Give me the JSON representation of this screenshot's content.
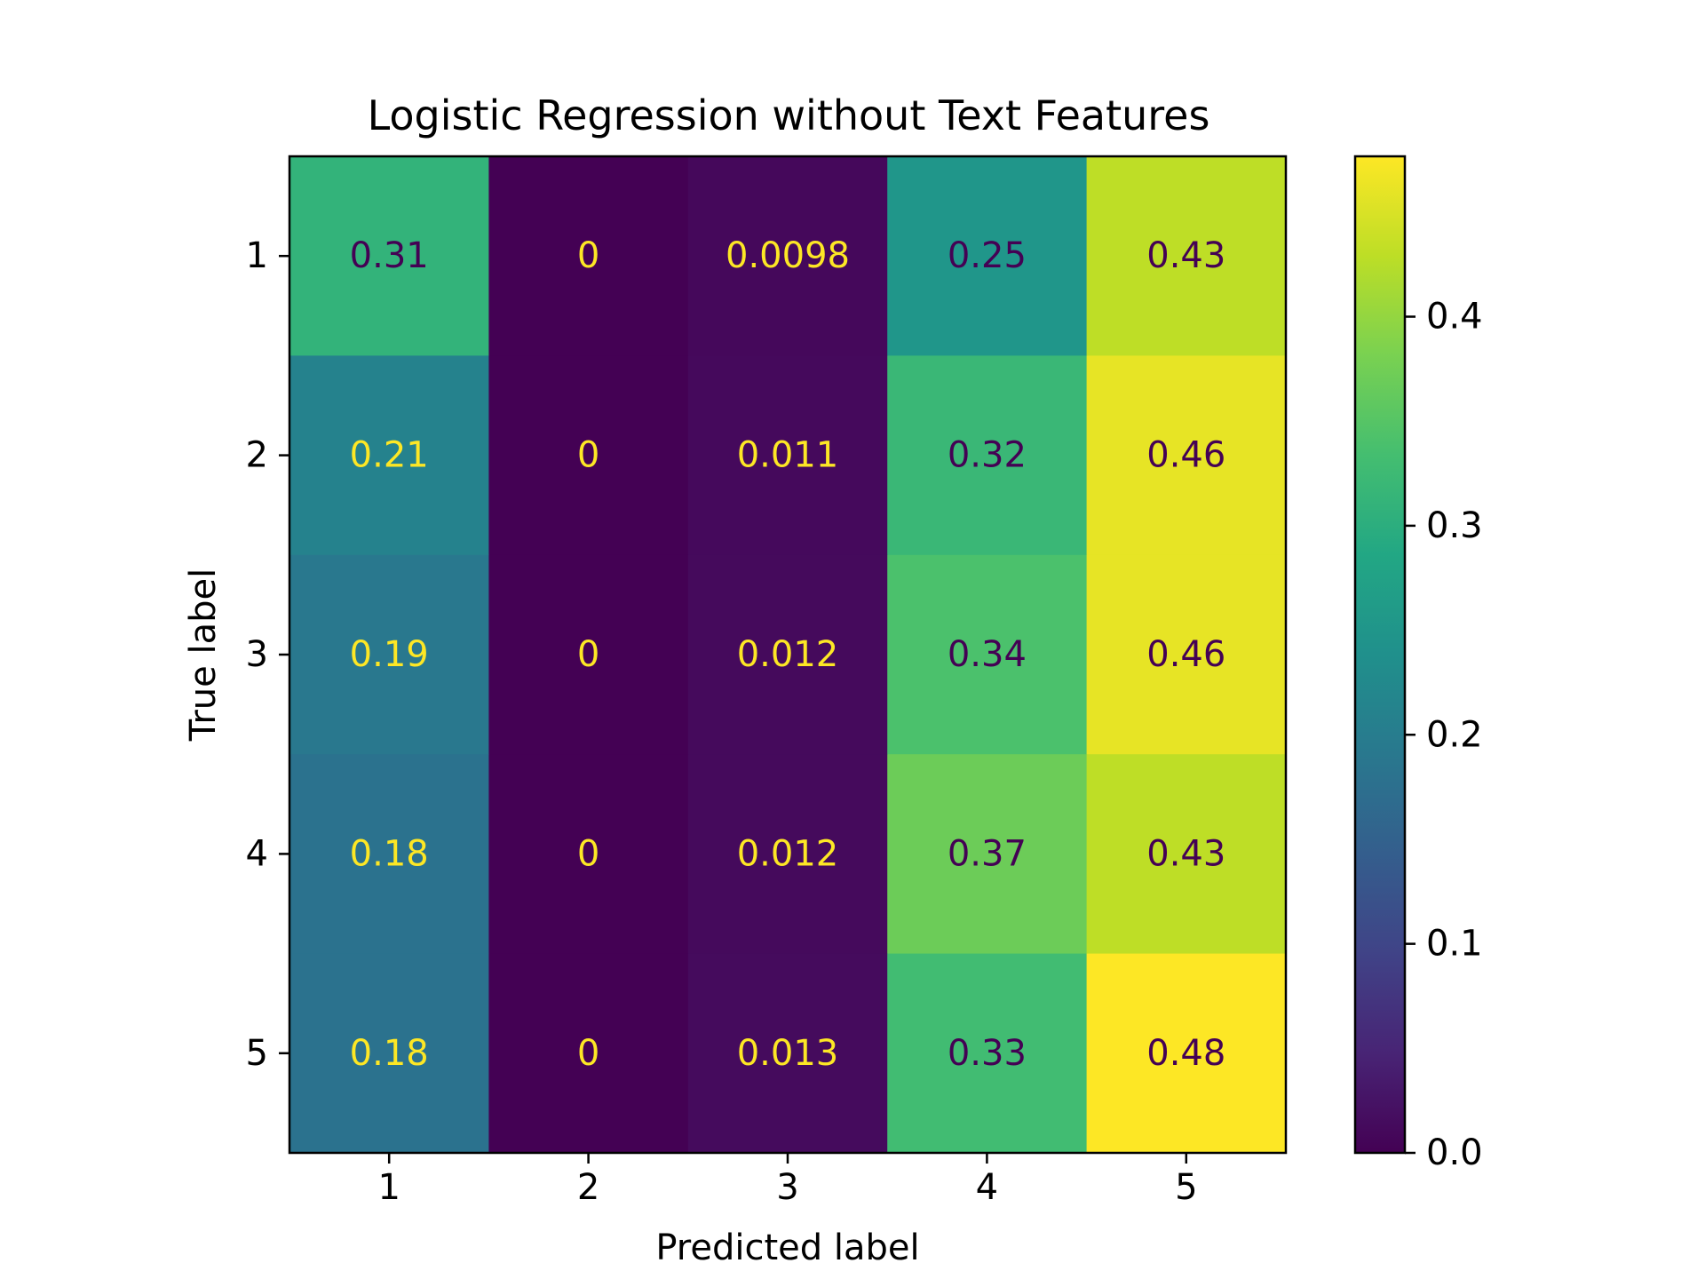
{
  "chart_data": {
    "type": "heatmap",
    "title": "Logistic Regression without Text Features",
    "xlabel": "Predicted label",
    "ylabel": "True label",
    "x_categories": [
      "1",
      "2",
      "3",
      "4",
      "5"
    ],
    "y_categories": [
      "1",
      "2",
      "3",
      "4",
      "5"
    ],
    "values": [
      [
        0.31,
        0,
        0.0098,
        0.25,
        0.43
      ],
      [
        0.21,
        0,
        0.011,
        0.32,
        0.46
      ],
      [
        0.19,
        0,
        0.012,
        0.34,
        0.46
      ],
      [
        0.18,
        0,
        0.012,
        0.37,
        0.43
      ],
      [
        0.18,
        0,
        0.013,
        0.33,
        0.48
      ]
    ],
    "cell_labels": [
      [
        "0.31",
        "0",
        "0.0098",
        "0.25",
        "0.43"
      ],
      [
        "0.21",
        "0",
        "0.011",
        "0.32",
        "0.46"
      ],
      [
        "0.19",
        "0",
        "0.012",
        "0.34",
        "0.46"
      ],
      [
        "0.18",
        "0",
        "0.012",
        "0.37",
        "0.43"
      ],
      [
        "0.18",
        "0",
        "0.013",
        "0.33",
        "0.48"
      ]
    ],
    "colormap": "viridis",
    "colorbar": {
      "range": [
        0,
        0.4767
      ],
      "ticks": [
        0.0,
        0.1,
        0.2,
        0.3,
        0.4
      ],
      "tick_labels": [
        "0.0",
        "0.1",
        "0.2",
        "0.3",
        "0.4"
      ]
    },
    "text_colors": {
      "dark": "#440154",
      "light": "#fde725"
    },
    "grid": false,
    "legend": "colorbar-right"
  }
}
